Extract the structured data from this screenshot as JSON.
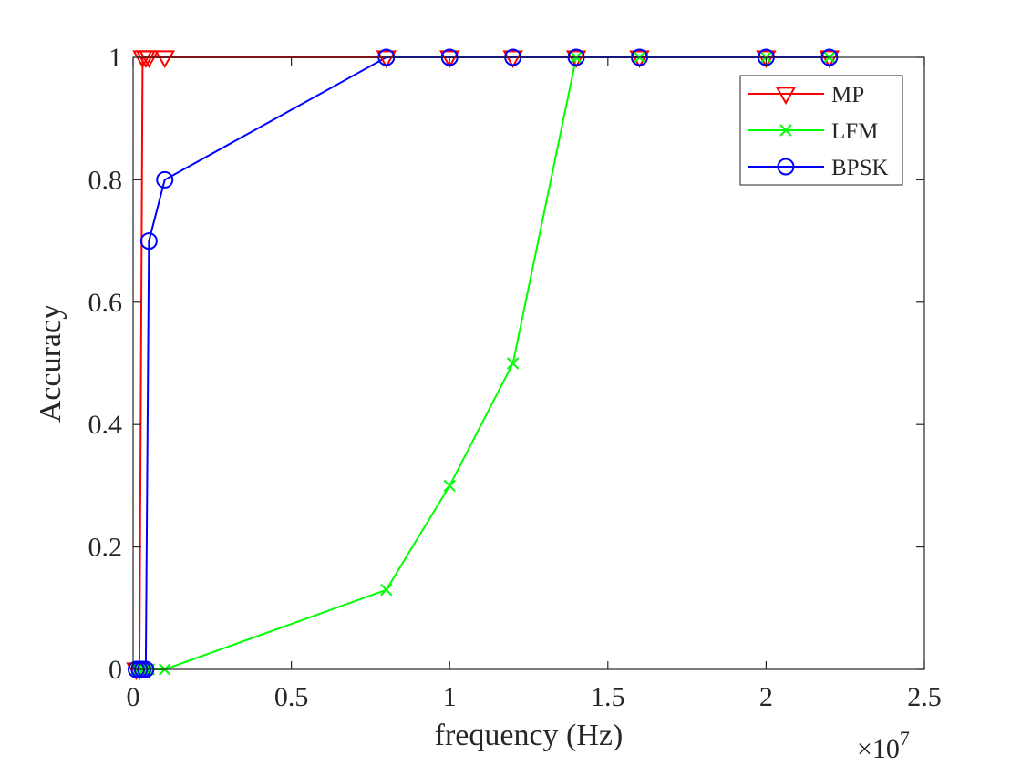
{
  "chart_data": {
    "type": "line",
    "title": "",
    "xlabel": "frequency (Hz)",
    "ylabel": "Accuracy",
    "x_exponent_label": "×10",
    "x_exponent_power": "7",
    "xlim": [
      0,
      2.5
    ],
    "ylim": [
      0,
      1
    ],
    "x_unit_scale": 10000000,
    "x_ticks": [
      0,
      0.5,
      1,
      1.5,
      2,
      2.5
    ],
    "x_tick_labels": [
      "0",
      "0.5",
      "1",
      "1.5",
      "2",
      "2.5"
    ],
    "y_ticks": [
      0,
      0.2,
      0.4,
      0.6,
      0.8,
      1
    ],
    "y_tick_labels": [
      "0",
      "0.2",
      "0.4",
      "0.6",
      "0.8",
      "1"
    ],
    "grid": false,
    "legend_position": "top-right",
    "series": [
      {
        "name": "MP",
        "color": "#ff0000",
        "marker": "triangle-down",
        "x": [
          0.01,
          0.02,
          0.03,
          0.04,
          0.05,
          0.1,
          0.8,
          1.0,
          1.2,
          1.4,
          1.6,
          2.0,
          2.2
        ],
        "y": [
          0,
          0,
          1,
          1,
          1,
          1,
          1,
          1,
          1,
          1,
          1,
          1,
          1
        ]
      },
      {
        "name": "LFM",
        "color": "#00ff00",
        "marker": "x",
        "x": [
          0.01,
          0.02,
          0.03,
          0.04,
          0.05,
          0.1,
          0.8,
          1.0,
          1.2,
          1.4,
          1.6,
          2.0,
          2.2
        ],
        "y": [
          0,
          0,
          0,
          0,
          0,
          0,
          0.13,
          0.3,
          0.5,
          1,
          1,
          1,
          1
        ]
      },
      {
        "name": "BPSK",
        "color": "#0000ff",
        "marker": "circle",
        "x": [
          0.01,
          0.02,
          0.03,
          0.04,
          0.05,
          0.1,
          0.8,
          1.0,
          1.2,
          1.4,
          1.6,
          2.0,
          2.2
        ],
        "y": [
          0,
          0,
          0,
          0,
          0.7,
          0.8,
          1,
          1,
          1,
          1,
          1,
          1,
          1
        ]
      }
    ]
  }
}
